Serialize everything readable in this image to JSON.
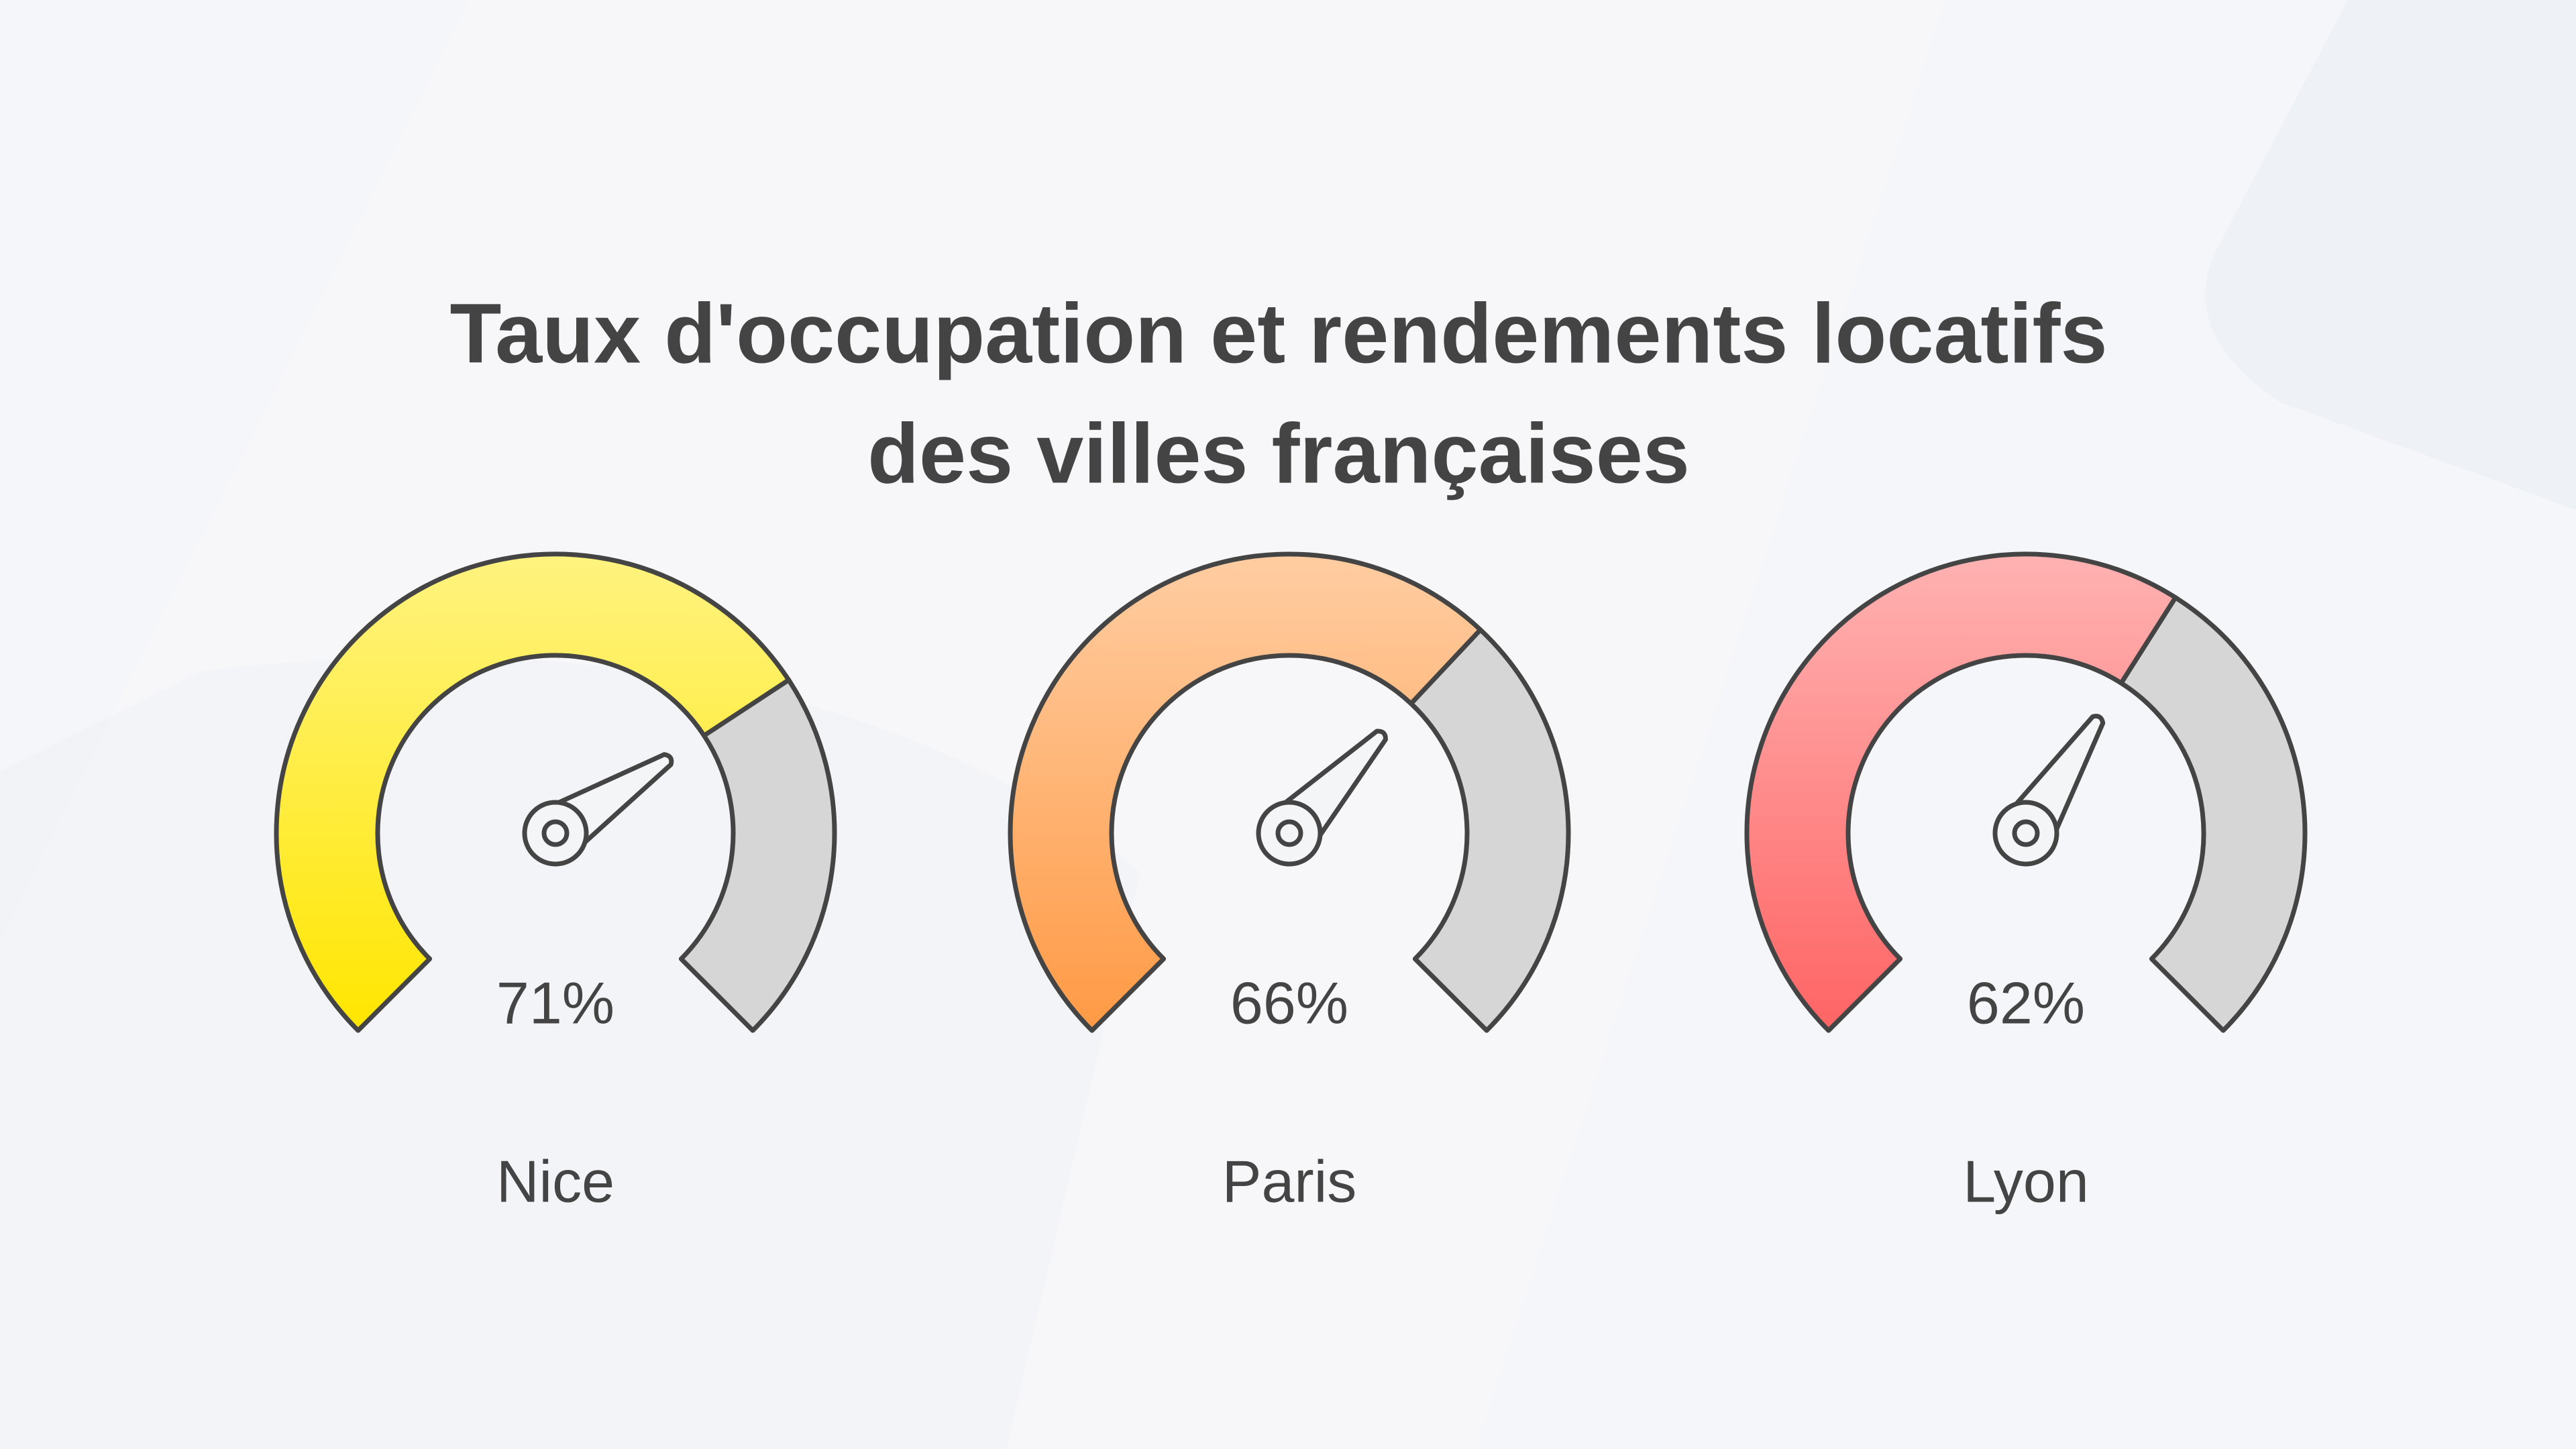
{
  "chart_data": {
    "type": "gauge",
    "title_lines": [
      "Taux d'occupation et rendements locatifs",
      "des villes françaises"
    ],
    "categories": [
      "Nice",
      "Paris",
      "Lyon"
    ],
    "values": [
      71,
      66,
      62
    ],
    "value_labels": [
      "71%",
      "66%",
      "62%"
    ],
    "colors": [
      "#ffe600",
      "#ff9a45",
      "#ff6464"
    ],
    "ylim": [
      0,
      100
    ]
  }
}
